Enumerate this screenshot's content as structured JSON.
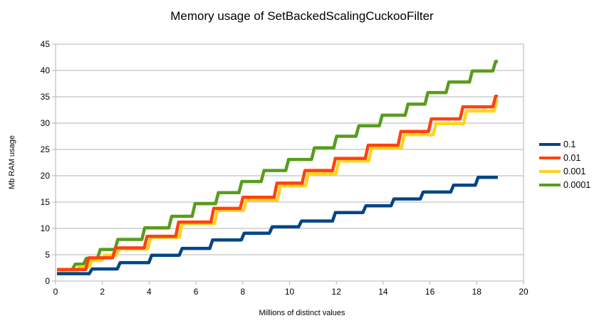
{
  "colors": {
    "background": "#ffffff",
    "grid": "#b3b3b3",
    "axis": "#b3b3b3",
    "text": "#000000"
  },
  "chart_data": {
    "type": "line",
    "line_style": "step",
    "title": "Memory usage of SetBackedScalingCuckooFilter",
    "xlabel": "Millions of distinct values",
    "ylabel": "Mb RAM usage",
    "xlim": [
      0,
      20
    ],
    "ylim": [
      0,
      45
    ],
    "xticks": [
      0,
      2,
      4,
      6,
      8,
      10,
      12,
      14,
      16,
      18,
      20
    ],
    "yticks": [
      0,
      5,
      10,
      15,
      20,
      25,
      30,
      35,
      40,
      45
    ],
    "grid": "horizontal",
    "legend_position": "right",
    "series": [
      {
        "name": "0.1",
        "color": "#004586",
        "x_end": 18.9,
        "points": [
          [
            0,
            1.4
          ],
          [
            1.5,
            2.3
          ],
          [
            2.7,
            3.5
          ],
          [
            4.05,
            4.9
          ],
          [
            5.35,
            6.2
          ],
          [
            6.65,
            7.8
          ],
          [
            8.0,
            9.1
          ],
          [
            9.2,
            10.3
          ],
          [
            10.45,
            11.4
          ],
          [
            11.9,
            13.0
          ],
          [
            13.2,
            14.3
          ],
          [
            14.4,
            15.6
          ],
          [
            15.65,
            16.9
          ],
          [
            16.95,
            18.2
          ],
          [
            18.0,
            19.7
          ]
        ]
      },
      {
        "name": "0.01",
        "color": "#ff420e",
        "x_end": 18.9,
        "points": [
          [
            0,
            2.2
          ],
          [
            1.35,
            4.4
          ],
          [
            2.5,
            6.3
          ],
          [
            3.85,
            8.5
          ],
          [
            5.2,
            11.2
          ],
          [
            6.7,
            13.8
          ],
          [
            7.95,
            15.9
          ],
          [
            9.4,
            18.6
          ],
          [
            10.6,
            21.0
          ],
          [
            11.9,
            23.3
          ],
          [
            13.3,
            25.8
          ],
          [
            14.7,
            28.4
          ],
          [
            16.0,
            30.8
          ],
          [
            17.35,
            33.1
          ],
          [
            18.75,
            35.1
          ]
        ]
      },
      {
        "name": "0.001",
        "color": "#ffd320",
        "x_end": 18.9,
        "points": [
          [
            0,
            1.8
          ],
          [
            0.95,
            2.7
          ],
          [
            1.5,
            3.9
          ],
          [
            2.05,
            4.9
          ],
          [
            2.65,
            6.1
          ],
          [
            4.0,
            8.3
          ],
          [
            5.35,
            10.9
          ],
          [
            6.85,
            13.4
          ],
          [
            8.1,
            15.4
          ],
          [
            9.55,
            18.1
          ],
          [
            10.75,
            20.4
          ],
          [
            12.05,
            22.8
          ],
          [
            13.45,
            25.3
          ],
          [
            14.85,
            27.8
          ],
          [
            16.2,
            29.9
          ],
          [
            17.5,
            32.3
          ],
          [
            18.8,
            34.3
          ]
        ]
      },
      {
        "name": "0.0001",
        "color": "#579d1c",
        "x_end": 18.9,
        "points": [
          [
            0,
            2.2
          ],
          [
            0.78,
            3.2
          ],
          [
            1.25,
            4.3
          ],
          [
            1.85,
            6.0
          ],
          [
            2.6,
            7.9
          ],
          [
            3.75,
            10.1
          ],
          [
            4.9,
            12.3
          ],
          [
            5.9,
            14.7
          ],
          [
            6.9,
            16.8
          ],
          [
            7.9,
            18.9
          ],
          [
            8.85,
            21.0
          ],
          [
            9.9,
            23.1
          ],
          [
            11.0,
            25.3
          ],
          [
            11.95,
            27.5
          ],
          [
            12.9,
            29.5
          ],
          [
            13.9,
            31.5
          ],
          [
            15.0,
            33.6
          ],
          [
            15.85,
            35.8
          ],
          [
            16.75,
            37.8
          ],
          [
            17.75,
            39.9
          ],
          [
            18.75,
            41.7
          ]
        ]
      }
    ]
  }
}
